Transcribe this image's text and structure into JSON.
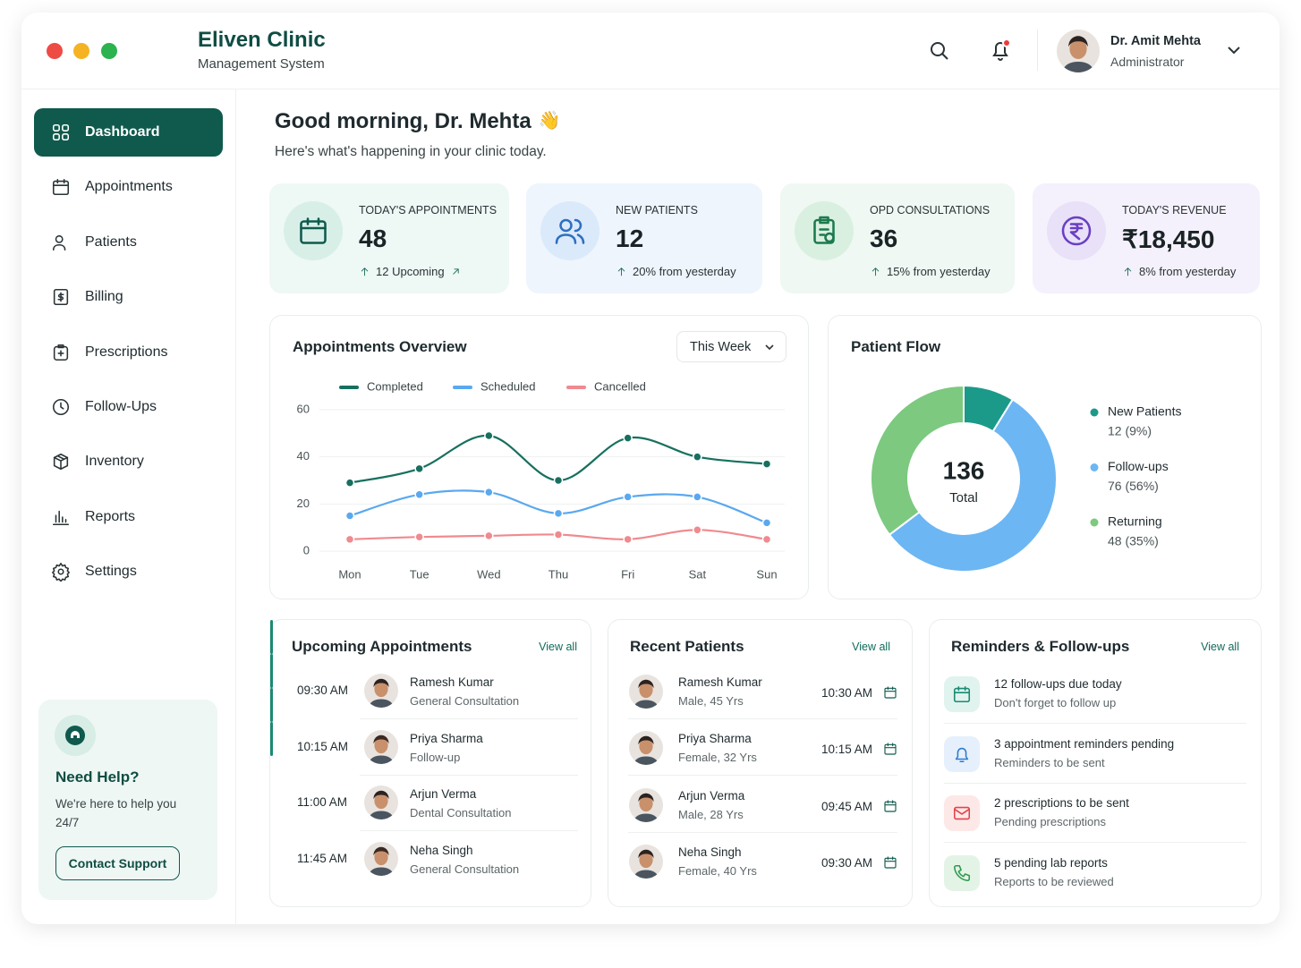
{
  "header": {
    "title": "Eliven Clinic",
    "subtitle": "Management System",
    "user_name": "Dr. Amit Mehta",
    "user_role": "Administrator"
  },
  "sidebar": {
    "nav": [
      "Dashboard",
      "Appointments",
      "Patients",
      "Billing",
      "Prescriptions",
      "Follow-Ups",
      "Inventory",
      "Reports",
      "Settings"
    ],
    "help_title": "Need Help?",
    "help_text": "We're here to help you 24/7",
    "help_button": "Contact Support"
  },
  "greeting": {
    "title": "Good morning, Dr. Mehta",
    "emoji": "👋",
    "subtitle": "Here's what's happening in your clinic today."
  },
  "stats": [
    {
      "label": "TODAY'S APPOINTMENTS",
      "value": "48",
      "note": "12 Upcoming"
    },
    {
      "label": "NEW PATIENTS",
      "value": "12",
      "note": "20% from yesterday"
    },
    {
      "label": "OPD CONSULTATIONS",
      "value": "36",
      "note": "15% from yesterday"
    },
    {
      "label": "TODAY'S REVENUE",
      "value": "₹18,450",
      "note": "8% from yesterday"
    }
  ],
  "chart_data": [
    {
      "type": "line",
      "title": "Appointments Overview",
      "filter": "This Week",
      "categories": [
        "Mon",
        "Tue",
        "Wed",
        "Thu",
        "Fri",
        "Sat",
        "Sun"
      ],
      "series": [
        {
          "name": "Completed",
          "color": "#17705f",
          "values": [
            29,
            35,
            49,
            30,
            48,
            40,
            37
          ]
        },
        {
          "name": "Scheduled",
          "color": "#5aa8ef",
          "values": [
            15,
            24,
            25,
            16,
            23,
            23,
            12
          ]
        },
        {
          "name": "Cancelled",
          "color": "#ef8a8f",
          "values": [
            5,
            6,
            6.5,
            7,
            5,
            9,
            5
          ]
        }
      ],
      "ylim": [
        0,
        60
      ],
      "yticks": [
        0,
        20,
        40,
        60
      ],
      "grid": true,
      "legend": "top"
    },
    {
      "type": "pie",
      "title": "Patient Flow",
      "center_value": "136",
      "center_label": "Total",
      "categories": [
        "New Patients",
        "Follow-ups",
        "Returning"
      ],
      "values": [
        12,
        76,
        48
      ],
      "value_labels": [
        "12 (9%)",
        "76 (56%)",
        "48 (35%)"
      ],
      "colors": [
        "#1b9a8a",
        "#6cb6f3",
        "#7cc97f"
      ],
      "legend": "right"
    }
  ],
  "upcoming": {
    "title": "Upcoming Appointments",
    "view_all": "View all",
    "items": [
      {
        "time": "09:30 AM",
        "name": "Ramesh Kumar",
        "type": "General Consultation"
      },
      {
        "time": "10:15 AM",
        "name": "Priya Sharma",
        "type": "Follow-up"
      },
      {
        "time": "11:00 AM",
        "name": "Arjun Verma",
        "type": "Dental Consultation"
      },
      {
        "time": "11:45 AM",
        "name": "Neha Singh",
        "type": "General Consultation"
      }
    ]
  },
  "recent": {
    "title": "Recent Patients",
    "view_all": "View all",
    "items": [
      {
        "name": "Ramesh Kumar",
        "info": "Male, 45 Yrs",
        "time": "10:30 AM"
      },
      {
        "name": "Priya Sharma",
        "info": "Female, 32 Yrs",
        "time": "10:15 AM"
      },
      {
        "name": "Arjun Verma",
        "info": "Male, 28 Yrs",
        "time": "09:45 AM"
      },
      {
        "name": "Neha Singh",
        "info": "Female, 40 Yrs",
        "time": "09:30 AM"
      }
    ]
  },
  "reminders": {
    "title": "Reminders & Follow-ups",
    "view_all": "View all",
    "items": [
      {
        "title": "12 follow-ups due today",
        "subtitle": "Don't forget to follow up"
      },
      {
        "title": "3 appointment reminders pending",
        "subtitle": "Reminders to be sent"
      },
      {
        "title": "2 prescriptions to be sent",
        "subtitle": "Pending prescriptions"
      },
      {
        "title": "5 pending lab reports",
        "subtitle": "Reports to be reviewed"
      }
    ]
  }
}
